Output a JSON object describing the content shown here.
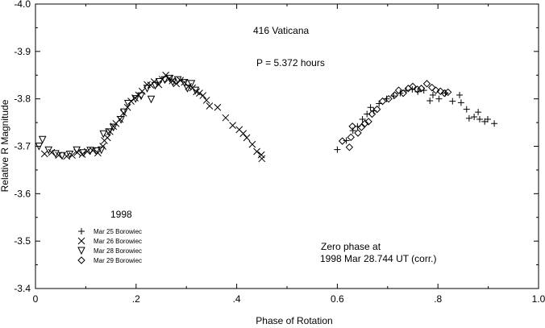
{
  "chart_data": {
    "type": "scatter",
    "xlabel": "Phase of Rotation",
    "ylabel": "Relative R Magnitude",
    "xlim": [
      0.0,
      1.0
    ],
    "ylim": [
      -3.4,
      -4.0
    ],
    "y_inverted": true,
    "xticks": [
      {
        "v": 0.0,
        "label": "0"
      },
      {
        "v": 0.2,
        "label": ".2"
      },
      {
        "v": 0.4,
        "label": ".4"
      },
      {
        "v": 0.6,
        "label": "0.6"
      },
      {
        "v": 0.8,
        "label": ".8"
      },
      {
        "v": 1.0,
        "label": "1.0"
      }
    ],
    "yticks": [
      {
        "v": -4.0,
        "label": "-4.0"
      },
      {
        "v": -3.9,
        "label": "-3.9"
      },
      {
        "v": -3.8,
        "label": "-3.8"
      },
      {
        "v": -3.7,
        "label": "-3.7"
      },
      {
        "v": -3.6,
        "label": "-3.6"
      },
      {
        "v": -3.5,
        "label": "-3.5"
      },
      {
        "v": -3.4,
        "label": "-3.4"
      }
    ],
    "grid": false,
    "legend_placement": "bottom-left",
    "annotations": {
      "object": "416 Vaticana",
      "period": "P = 5.372 hours",
      "year": "1998",
      "zero_phase_1": "Zero phase at",
      "zero_phase_2": "1998 Mar 28.744 UT (corr.)"
    },
    "series": [
      {
        "name": "Mar 25 Borowiec",
        "marker": "plus",
        "points": [
          [
            0.6,
            -3.693
          ],
          [
            0.618,
            -3.712
          ],
          [
            0.631,
            -3.733
          ],
          [
            0.64,
            -3.742
          ],
          [
            0.65,
            -3.757
          ],
          [
            0.659,
            -3.768
          ],
          [
            0.666,
            -3.782
          ],
          [
            0.672,
            -3.775
          ],
          [
            0.683,
            -3.79
          ],
          [
            0.698,
            -3.8
          ],
          [
            0.712,
            -3.806
          ],
          [
            0.725,
            -3.812
          ],
          [
            0.737,
            -3.818
          ],
          [
            0.749,
            -3.82
          ],
          [
            0.76,
            -3.815
          ],
          [
            0.772,
            -3.818
          ],
          [
            0.784,
            -3.796
          ],
          [
            0.79,
            -3.808
          ],
          [
            0.802,
            -3.8
          ],
          [
            0.815,
            -3.812
          ],
          [
            0.829,
            -3.795
          ],
          [
            0.843,
            -3.808
          ],
          [
            0.846,
            -3.792
          ],
          [
            0.857,
            -3.778
          ],
          [
            0.862,
            -3.759
          ],
          [
            0.872,
            -3.762
          ],
          [
            0.88,
            -3.772
          ],
          [
            0.883,
            -3.757
          ],
          [
            0.893,
            -3.752
          ],
          [
            0.899,
            -3.757
          ],
          [
            0.912,
            -3.748
          ]
        ]
      },
      {
        "name": "Mar 26 Borowiec",
        "marker": "cross",
        "points": [
          [
            0.018,
            -3.684
          ],
          [
            0.032,
            -3.687
          ],
          [
            0.046,
            -3.681
          ],
          [
            0.062,
            -3.679
          ],
          [
            0.073,
            -3.681
          ],
          [
            0.083,
            -3.687
          ],
          [
            0.093,
            -3.683
          ],
          [
            0.103,
            -3.689
          ],
          [
            0.114,
            -3.691
          ],
          [
            0.124,
            -3.686
          ],
          [
            0.134,
            -3.7
          ],
          [
            0.137,
            -3.712
          ],
          [
            0.143,
            -3.718
          ],
          [
            0.148,
            -3.731
          ],
          [
            0.155,
            -3.742
          ],
          [
            0.16,
            -3.748
          ],
          [
            0.168,
            -3.757
          ],
          [
            0.175,
            -3.77
          ],
          [
            0.183,
            -3.782
          ],
          [
            0.19,
            -3.795
          ],
          [
            0.198,
            -3.802
          ],
          [
            0.205,
            -3.808
          ],
          [
            0.212,
            -3.816
          ],
          [
            0.222,
            -3.83
          ],
          [
            0.229,
            -3.829
          ],
          [
            0.236,
            -3.836
          ],
          [
            0.245,
            -3.83
          ],
          [
            0.252,
            -3.841
          ],
          [
            0.259,
            -3.85
          ],
          [
            0.265,
            -3.842
          ],
          [
            0.272,
            -3.838
          ],
          [
            0.28,
            -3.832
          ],
          [
            0.288,
            -3.839
          ],
          [
            0.296,
            -3.835
          ],
          [
            0.304,
            -3.826
          ],
          [
            0.312,
            -3.823
          ],
          [
            0.32,
            -3.815
          ],
          [
            0.326,
            -3.812
          ],
          [
            0.333,
            -3.807
          ],
          [
            0.34,
            -3.797
          ],
          [
            0.346,
            -3.785
          ],
          [
            0.362,
            -3.782
          ],
          [
            0.378,
            -3.76
          ],
          [
            0.392,
            -3.744
          ],
          [
            0.405,
            -3.735
          ],
          [
            0.413,
            -3.727
          ],
          [
            0.42,
            -3.718
          ],
          [
            0.431,
            -3.704
          ],
          [
            0.44,
            -3.689
          ],
          [
            0.449,
            -3.682
          ],
          [
            0.45,
            -3.674
          ]
        ]
      },
      {
        "name": "Mar 28 Borowiec",
        "marker": "triangle-down",
        "points": [
          [
            0.007,
            -3.7
          ],
          [
            0.014,
            -3.714
          ],
          [
            0.026,
            -3.692
          ],
          [
            0.04,
            -3.684
          ],
          [
            0.053,
            -3.68
          ],
          [
            0.068,
            -3.683
          ],
          [
            0.082,
            -3.692
          ],
          [
            0.095,
            -3.686
          ],
          [
            0.109,
            -3.691
          ],
          [
            0.121,
            -3.69
          ],
          [
            0.131,
            -3.692
          ],
          [
            0.135,
            -3.726
          ],
          [
            0.146,
            -3.73
          ],
          [
            0.155,
            -3.74
          ],
          [
            0.17,
            -3.756
          ],
          [
            0.176,
            -3.772
          ],
          [
            0.184,
            -3.79
          ],
          [
            0.199,
            -3.8
          ],
          [
            0.21,
            -3.806
          ],
          [
            0.222,
            -3.822
          ],
          [
            0.23,
            -3.799
          ],
          [
            0.238,
            -3.828
          ],
          [
            0.246,
            -3.836
          ],
          [
            0.257,
            -3.84
          ],
          [
            0.267,
            -3.843
          ],
          [
            0.273,
            -3.835
          ],
          [
            0.283,
            -3.84
          ],
          [
            0.296,
            -3.834
          ],
          [
            0.302,
            -3.822
          ],
          [
            0.31,
            -3.832
          ],
          [
            0.318,
            -3.818
          ]
        ]
      },
      {
        "name": "Mar 29 Borowiec",
        "marker": "diamond",
        "points": [
          [
            0.61,
            -3.711
          ],
          [
            0.624,
            -3.698
          ],
          [
            0.627,
            -3.719
          ],
          [
            0.63,
            -3.742
          ],
          [
            0.641,
            -3.728
          ],
          [
            0.648,
            -3.74
          ],
          [
            0.655,
            -3.748
          ],
          [
            0.662,
            -3.752
          ],
          [
            0.669,
            -3.768
          ],
          [
            0.679,
            -3.778
          ],
          [
            0.69,
            -3.795
          ],
          [
            0.702,
            -3.8
          ],
          [
            0.714,
            -3.808
          ],
          [
            0.722,
            -3.818
          ],
          [
            0.731,
            -3.812
          ],
          [
            0.741,
            -3.822
          ],
          [
            0.75,
            -3.826
          ],
          [
            0.759,
            -3.82
          ],
          [
            0.767,
            -3.822
          ],
          [
            0.778,
            -3.832
          ],
          [
            0.788,
            -3.824
          ],
          [
            0.796,
            -3.818
          ],
          [
            0.805,
            -3.816
          ],
          [
            0.813,
            -3.812
          ],
          [
            0.82,
            -3.814
          ]
        ]
      }
    ]
  }
}
